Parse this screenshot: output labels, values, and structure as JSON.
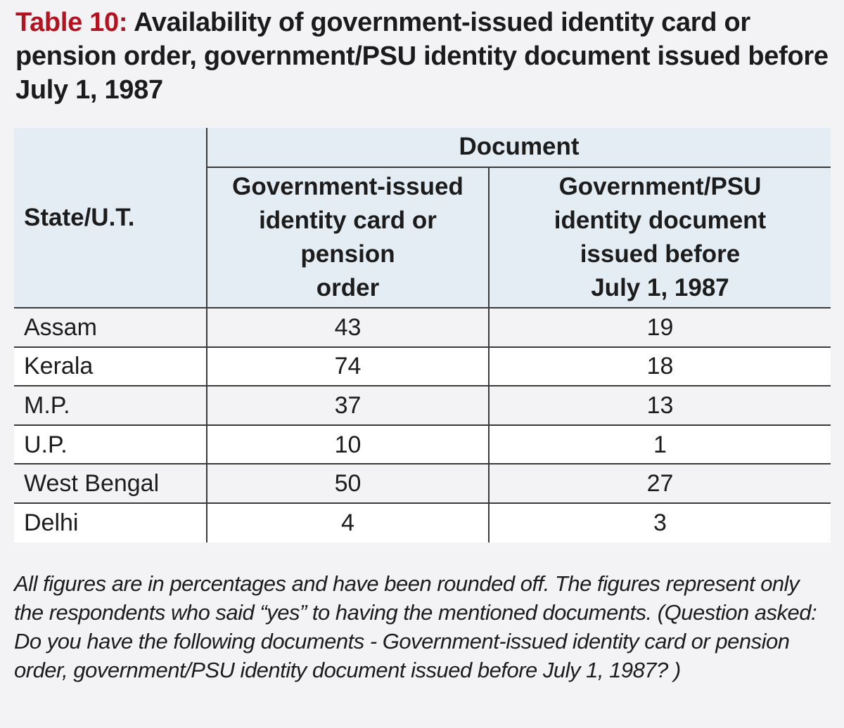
{
  "title": {
    "label": "Table 10:",
    "text": "Availability of government-issued identity card or pension order, government/PSU identity document issued before July 1, 1987"
  },
  "chart_data": {
    "type": "table",
    "title": "Table 10: Availability of government-issued identity card or pension order, government/PSU identity document issued before July 1, 1987",
    "row_header": "State/U.T.",
    "group_header": "Document",
    "columns": [
      "Government-issued identity card or pension order",
      "Government/PSU identity document issued before July 1, 1987"
    ],
    "rows": [
      {
        "state": "Assam",
        "values": [
          "43",
          "19"
        ]
      },
      {
        "state": "Kerala",
        "values": [
          "74",
          "18"
        ]
      },
      {
        "state": "M.P.",
        "values": [
          "37",
          "13"
        ]
      },
      {
        "state": "U.P.",
        "values": [
          "10",
          "1"
        ]
      },
      {
        "state": "West Bengal",
        "values": [
          "50",
          "27"
        ]
      },
      {
        "state": "Delhi",
        "values": [
          "4",
          "3"
        ]
      }
    ]
  },
  "header_lines": {
    "col1": [
      "Government-issued",
      "identity card or",
      "pension",
      "order"
    ],
    "col2": [
      "Government/PSU",
      "identity document",
      "issued before",
      "July 1, 1987"
    ]
  },
  "note": "All figures are in percentages and have been rounded off. The figures represent only the respondents who said “yes” to having the mentioned documents.  (Question asked: Do you have the following documents - Government-issued identity card or pension order, government/PSU identity document issued before July 1, 1987? )"
}
